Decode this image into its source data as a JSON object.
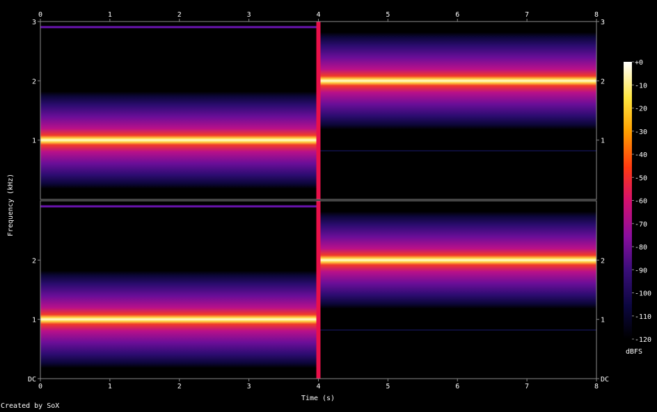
{
  "chart_data": {
    "type": "heatmap",
    "title": "",
    "xlabel": "Time (s)",
    "ylabel": "Frequency (kHz)",
    "xlim": [
      0,
      8
    ],
    "ylim": [
      0,
      3
    ],
    "x_ticks": [
      "0",
      "1",
      "2",
      "3",
      "4",
      "5",
      "6",
      "7",
      "8"
    ],
    "y_ticks_top_channel": [
      "1",
      "2",
      "3"
    ],
    "y_ticks_bottom_channel": [
      "DC",
      "1",
      "2"
    ],
    "channels": [
      {
        "segments": [
          {
            "t_start": 0,
            "t_end": 4,
            "frequency_khz": 1
          },
          {
            "t_start": 4,
            "t_end": 8,
            "frequency_khz": 2
          }
        ]
      },
      {
        "segments": [
          {
            "t_start": 0,
            "t_end": 4,
            "frequency_khz": 1
          },
          {
            "t_start": 4,
            "t_end": 8,
            "frequency_khz": 2
          }
        ]
      }
    ],
    "colorbar": {
      "unit": "dBFS",
      "ticks": [
        "+0",
        "-10",
        "-20",
        "-30",
        "-40",
        "-50",
        "-60",
        "-70",
        "-80",
        "-90",
        "-100",
        "-110",
        "-120"
      ],
      "range_db": [
        -120,
        0
      ]
    },
    "colors": {
      "background": "#000000",
      "axis": "#8a8a8a",
      "palette": [
        "#000000",
        "#0c0740",
        "#3a0e7a",
        "#8a0e9e",
        "#d4106e",
        "#ff3a10",
        "#ffa000",
        "#ffe640",
        "#ffffff"
      ]
    }
  },
  "credit": "Created by SoX"
}
